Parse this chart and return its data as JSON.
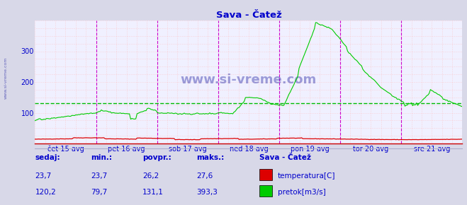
{
  "title": "Sava - Čatež",
  "title_color": "#0000cc",
  "bg_color": "#d8d8e8",
  "plot_bg_color": "#f0f0ff",
  "grid_color": "#ffbbbb",
  "xlabel_color": "#0000cc",
  "watermark": "www.si-vreme.com",
  "watermark_color": "#3333aa",
  "tick_labels": [
    "čet 15 avg",
    "pet 16 avg",
    "sob 17 avg",
    "ned 18 avg",
    "pon 19 avg",
    "tor 20 avg",
    "sre 21 avg"
  ],
  "ylim": [
    0,
    400
  ],
  "yticks": [
    100,
    200,
    300
  ],
  "avg_line": 131.1,
  "avg_line_color": "#00bb00",
  "temp_color": "#dd0000",
  "flow_color": "#00cc00",
  "axis_arrow_color": "#cc0000",
  "vline_color_major": "#cc00cc",
  "legend_title": "Sava - Čatež",
  "legend_temp_label": "temperatura[C]",
  "legend_flow_label": "pretok[m3/s]",
  "stat_labels": [
    "sedaj:",
    "min.:",
    "povpr.:",
    "maks.:"
  ],
  "temp_stats": [
    "23,7",
    "23,7",
    "26,2",
    "27,6"
  ],
  "flow_stats": [
    "120,2",
    "79,7",
    "131,1",
    "393,3"
  ],
  "stat_color": "#0000cc",
  "figsize": [
    6.59,
    2.9
  ],
  "dpi": 100
}
